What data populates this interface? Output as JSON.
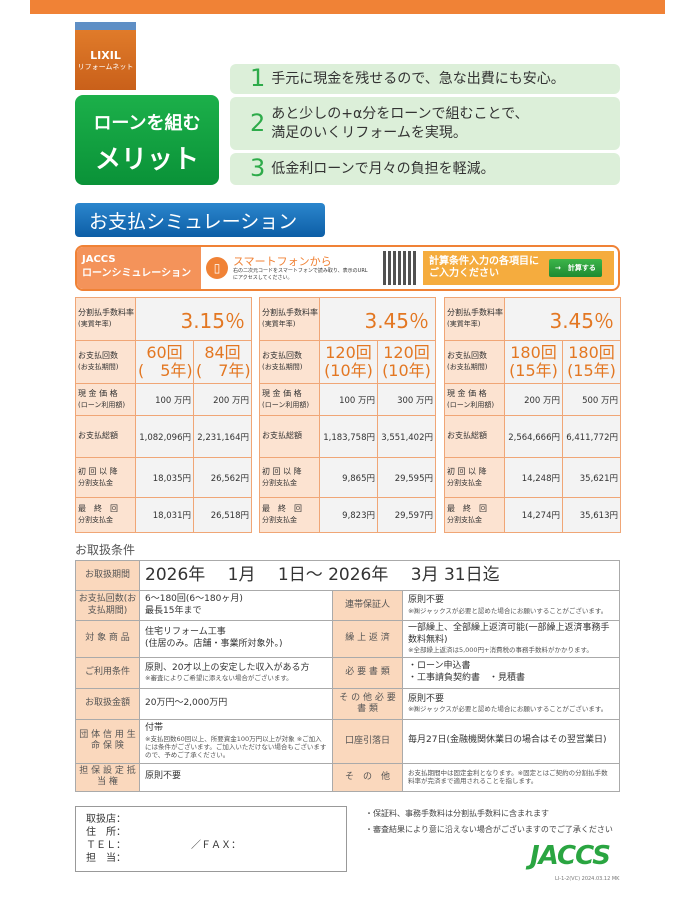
{
  "logo": {
    "brand": "LIXIL",
    "sub": "リフォームネット"
  },
  "merit": {
    "line1": "ローンを組む",
    "line2": "メリット",
    "items": [
      {
        "num": "1",
        "text": "手元に現金を残せるので、急な出費にも安心。"
      },
      {
        "num": "2",
        "text": "あと少しの+α分をローンで組むことで、",
        "text2": "満足のいくリフォームを実現。"
      },
      {
        "num": "3",
        "text": "低金利ローンで月々の負担を軽減。"
      }
    ]
  },
  "sim_title": "お支払シミュレーション",
  "banner": {
    "brand": "JACCS",
    "title": "ローンシミュレーション",
    "phone_title": "スマートフォンから",
    "phone_desc": "右の二次元コードをスマートフォンで読み取り、表示のURLにアクセスしてください。",
    "prompt": "計算条件入力の各項目にご入力ください",
    "button": "→　計算する"
  },
  "labels": {
    "rate": "分割払手数料率",
    "rate2": "(実質年率)",
    "count": "お支払回数",
    "count2": "(お支払期間)",
    "cash": "現 金 価 格",
    "cash2": "(ローン利用額)",
    "total": "お支払総額",
    "first": "初 回 以 降",
    "first2": "分割支払金",
    "last": "最　終　回",
    "last2": "分割支払金"
  },
  "sims": [
    {
      "rate": "3.15％",
      "cols": [
        {
          "count": "60回",
          "period": "(　5年)",
          "cash": "100 万円",
          "total": "1,082,096円",
          "first": "18,035円",
          "last": "18,031円"
        },
        {
          "count": "84回",
          "period": "(　7年)",
          "cash": "200 万円",
          "total": "2,231,164円",
          "first": "26,562円",
          "last": "26,518円"
        }
      ]
    },
    {
      "rate": "3.45％",
      "cols": [
        {
          "count": "120回",
          "period": "(10年)",
          "cash": "100 万円",
          "total": "1,183,758円",
          "first": "9,865円",
          "last": "9,823円"
        },
        {
          "count": "120回",
          "period": "(10年)",
          "cash": "300 万円",
          "total": "3,551,402円",
          "first": "29,595円",
          "last": "29,597円"
        }
      ]
    },
    {
      "rate": "3.45％",
      "cols": [
        {
          "count": "180回",
          "period": "(15年)",
          "cash": "200 万円",
          "total": "2,564,666円",
          "first": "14,248円",
          "last": "14,274円"
        },
        {
          "count": "180回",
          "period": "(15年)",
          "cash": "500 万円",
          "total": "6,411,772円",
          "first": "35,621円",
          "last": "35,613円"
        }
      ]
    }
  ],
  "cond": {
    "title": "お取扱条件",
    "period_label": "お取扱期間",
    "period": "2026年　 1月　 1日～ 2026年　 3月 31日迄",
    "rows": [
      {
        "l1": "お支払回数(お支払期間)",
        "v1": "6～180回(6～180ヶ月)",
        "v1b": "最長15年まで",
        "l2": "連帯保証人",
        "v2": "原則不要",
        "v2n": "※㈱ジャックスが必要と認めた場合にお願いすることがございます。"
      },
      {
        "l1": "対 象 商 品",
        "v1": "住宅リフォーム工事",
        "v1b": "(住居のみ。店舗・事業所対象外。)",
        "l2": "繰 上 返 済",
        "v2": "一部繰上、全部繰上返済可能(一部繰上返済事務手数料無料)",
        "v2n": "※全部繰上返済は5,000円+消費税の事務手数料がかかります。"
      },
      {
        "l1": "ご利用条件",
        "v1": "原則、20才以上の安定した収入がある方",
        "v1n": "※審査によりご希望に添えない場合がございます。",
        "l2": "必 要 書 類",
        "v2": "・ローン申込書",
        "v2b": "・工事請負契約書　・見積書"
      },
      {
        "l1": "お取扱金額",
        "v1": "20万円～2,000万円",
        "l2": "そ の 他 必 要 書 類",
        "v2": "原則不要",
        "v2n": "※㈱ジャックスが必要と認めた場合にお願いすることがございます。"
      },
      {
        "l1": "団 体 信 用 生 命 保 険",
        "v1": "付帯",
        "v1n": "※支払回数60回以上、所要資金100万円以上が対象 ※ご加入には条件がございます。ご加入いただけない場合もございますので、予めご了承ください。",
        "l2": "口座引落日",
        "v2": "毎月27日(金融機関休業日の場合はその翌営業日)"
      },
      {
        "l1": "担 保 設 定 抵 当 権",
        "v1": "原則不要",
        "l2": "そ　の　他",
        "v2n": "お支払期間中は固定金利となります。※固定とはご契約の分割払手数料率が完済まで適用されることを指します。"
      }
    ]
  },
  "shop": {
    "l1": "取扱店：",
    "l2": "住　所：",
    "l3": "ＴＥＬ：　　　　　　　／ＦＡＸ：",
    "l4": "担　当："
  },
  "notes": [
    "・保証料、事務手数料は分割払手数料に含まれます",
    "・審査結果により意に沿えない場合がございますのでご了承ください"
  ],
  "jaccs_logo": "JACCS",
  "code": "LI-1-2(VC) 2024.03.12 MK"
}
